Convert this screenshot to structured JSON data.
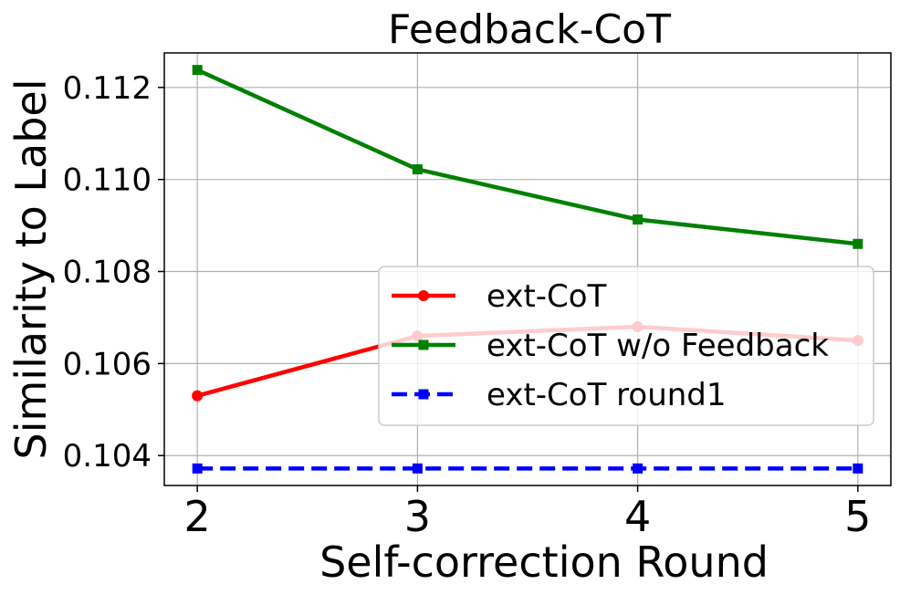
{
  "chart_data": {
    "type": "line",
    "title": "Feedback-CoT",
    "xlabel": "Self-correction Round",
    "ylabel": "Similarity to Label",
    "x": [
      2,
      3,
      4,
      5
    ],
    "xlim": [
      1.85,
      5.15
    ],
    "ylim": [
      0.10335,
      0.11275
    ],
    "xticks": [
      "2",
      "3",
      "4",
      "5"
    ],
    "yticks": [
      0.104,
      0.106,
      0.108,
      0.11,
      0.112
    ],
    "ytick_labels": [
      "0.104",
      "0.106",
      "0.108",
      "0.110",
      "0.112"
    ],
    "grid": true,
    "legend_position": "center-right",
    "series": [
      {
        "name": "ext-CoT",
        "color": "#ff0000",
        "marker": "circle",
        "dash": "solid",
        "values": [
          0.1053,
          0.1066,
          0.1068,
          0.1065
        ]
      },
      {
        "name": "ext-CoT w/o Feedback",
        "color": "#008000",
        "marker": "square",
        "dash": "solid",
        "values": [
          0.11238,
          0.11022,
          0.10913,
          0.1086
        ]
      },
      {
        "name": "ext-CoT round1",
        "color": "#0000ff",
        "marker": "square",
        "dash": "dashed",
        "values": [
          0.10372,
          0.10372,
          0.10372,
          0.10372
        ]
      }
    ]
  }
}
